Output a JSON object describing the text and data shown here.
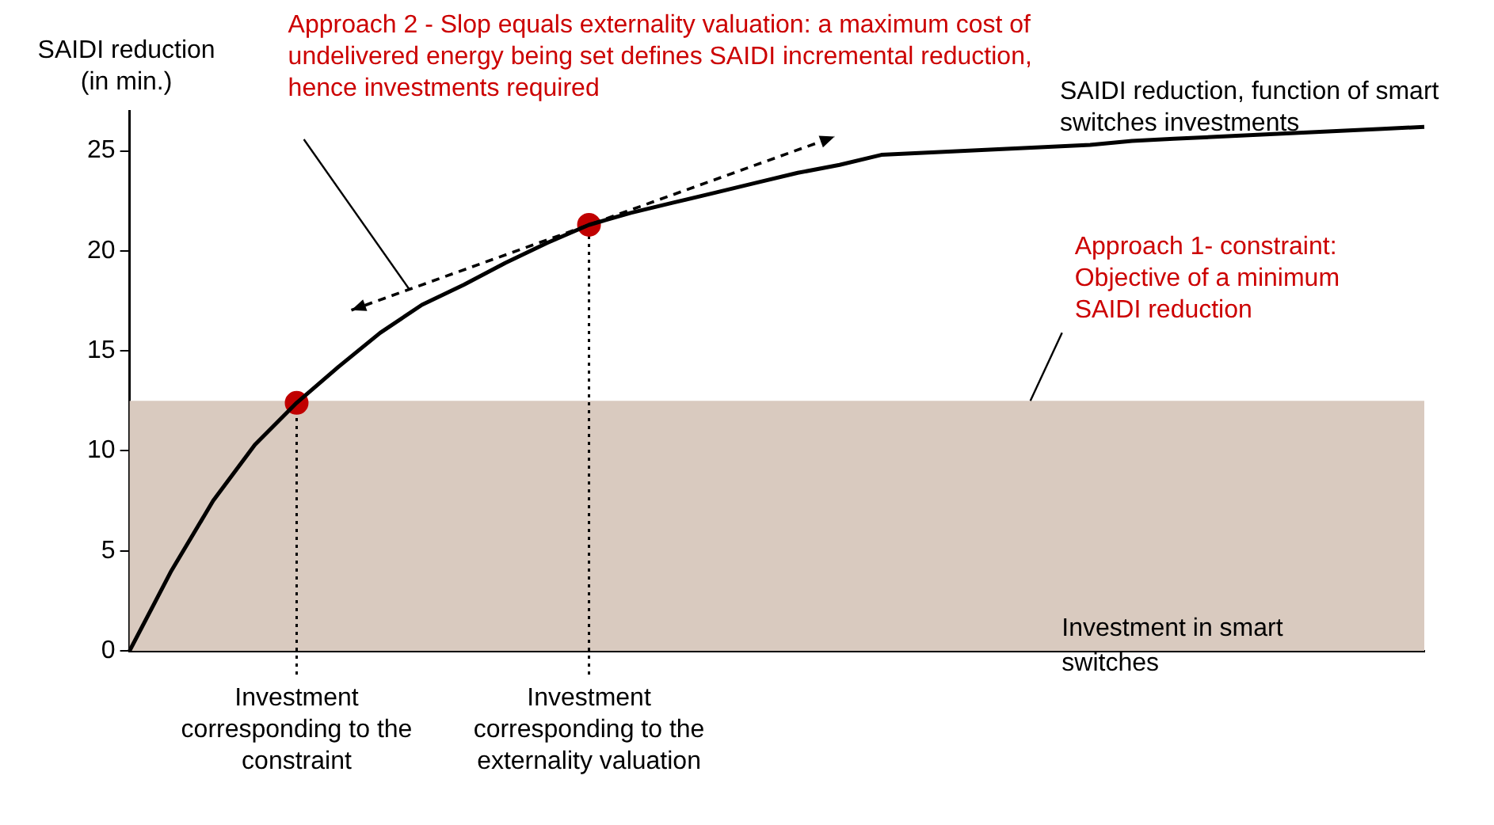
{
  "chart_data": {
    "type": "line",
    "ylabel": "SAIDI reduction (in min.)",
    "xlabel": "Investment in smart switches",
    "categories": [
      null,
      null,
      null,
      null,
      "Investment corresponding to the constraint",
      null,
      null,
      null,
      null,
      null,
      null,
      "Investment corresponding to the externality valuation",
      null,
      null,
      null,
      null,
      null,
      null,
      null,
      null,
      null,
      null,
      null,
      null,
      null,
      null,
      null,
      null,
      null,
      null,
      null,
      null
    ],
    "ylim": [
      0,
      27
    ],
    "yticks": [
      0,
      5,
      10,
      15,
      20,
      25
    ],
    "grid": false,
    "legend": false,
    "series": [
      {
        "name": "SAIDI reduction, function of smart switches investments",
        "color": "#000000",
        "marker": "none",
        "values": [
          0,
          4.0,
          7.5,
          10.3,
          12.4,
          14.2,
          15.9,
          17.3,
          18.3,
          19.4,
          20.4,
          21.3,
          21.9,
          22.4,
          22.9,
          23.4,
          23.9,
          24.3,
          24.8,
          24.9,
          25.0,
          25.1,
          25.2,
          25.3,
          25.5,
          25.6,
          25.7,
          25.8,
          25.9,
          26.0,
          26.1,
          26.2
        ]
      },
      {
        "type": "scatter",
        "color": "#c00000",
        "marker": "circle",
        "values": [
          null,
          null,
          null,
          null,
          12.4,
          null,
          null,
          null,
          null,
          null,
          null,
          21.3,
          null,
          null,
          null,
          null,
          null,
          null,
          null,
          null,
          null,
          null,
          null,
          null,
          null,
          null,
          null,
          null,
          null,
          null,
          null,
          null
        ]
      }
    ],
    "ref_lines": [
      {
        "axis": "x",
        "value": "Investment corresponding to the constraint",
        "line_style": "dotted",
        "color": "#000000"
      },
      {
        "axis": "x",
        "value": "Investment corresponding to the externality valuation",
        "line_style": "dotted",
        "color": "#000000"
      }
    ],
    "bands": [
      {
        "axis": "y",
        "from": 0,
        "to": 12.5,
        "label": "Approach 1- constraint: Objective of a minimum SAIDI reduction",
        "color": "#d9cabf"
      }
    ],
    "annotations": [
      "Approach 2 - Slop equals externality valuation: a maximum cost of undelivered energy being set defines SAIDI incremental reduction, hence investments required"
    ]
  }
}
